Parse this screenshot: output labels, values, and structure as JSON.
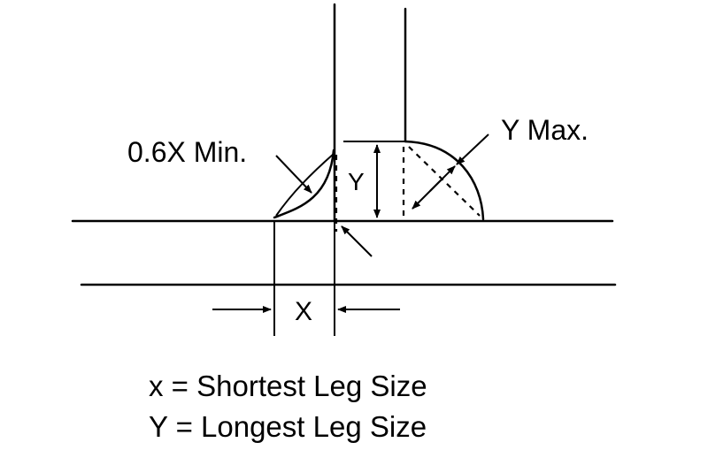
{
  "labels": {
    "min_callout": "0.6X Min.",
    "max_callout": "Y Max.",
    "y_leg": "Y",
    "x_leg": "X"
  },
  "legend": [
    "x = Shortest Leg Size",
    "Y = Longest Leg Size"
  ]
}
